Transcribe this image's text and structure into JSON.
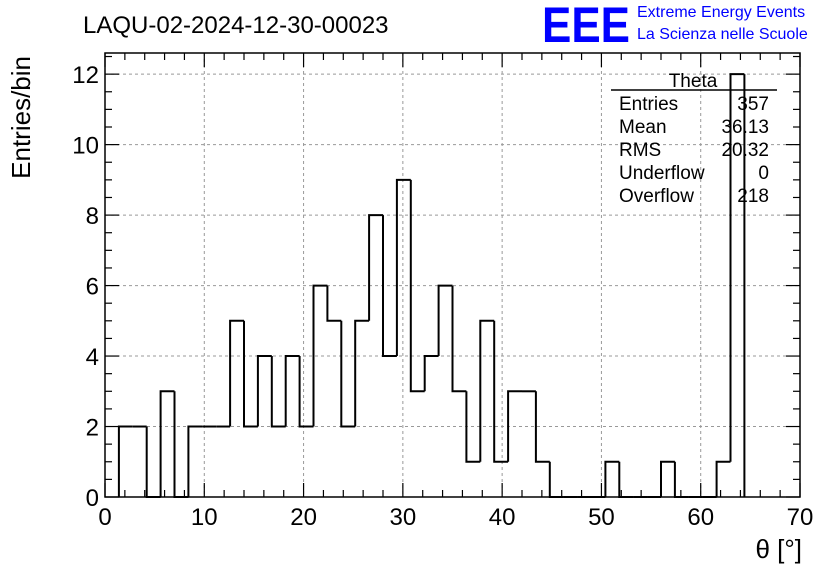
{
  "brand": {
    "logo_text": "EEE",
    "line1": "Extreme Energy Events",
    "line2": "La Scienza nelle Scuole",
    "color": "#0000ff"
  },
  "chart_data": {
    "type": "bar",
    "title": "LAQU-02-2024-12-30-00023",
    "xlabel": "θ [°]",
    "ylabel": "Entries/bin",
    "xlim": [
      0,
      70
    ],
    "ylim": [
      0,
      12.6
    ],
    "xticks": [
      "0",
      "10",
      "20",
      "30",
      "40",
      "50",
      "60",
      "70"
    ],
    "yticks": [
      "0",
      "2",
      "4",
      "6",
      "8",
      "10",
      "12"
    ],
    "grid": true,
    "bin_edges_start": 1.4,
    "bin_width": 1.4,
    "values": [
      2,
      2,
      0,
      3,
      0,
      2,
      2,
      2,
      5,
      2,
      4,
      2,
      4,
      2,
      6,
      5,
      2,
      5,
      8,
      4,
      9,
      3,
      4,
      6,
      3,
      1,
      5,
      1,
      3,
      3,
      1,
      0,
      0,
      0,
      0,
      1,
      0,
      0,
      0,
      1,
      0,
      0,
      0,
      1,
      12
    ],
    "line_color": "#000000"
  },
  "stats": {
    "title": "Theta",
    "rows": [
      {
        "label": "Entries",
        "value": "357"
      },
      {
        "label": "Mean",
        "value": "36.13"
      },
      {
        "label": "RMS",
        "value": "20.32"
      },
      {
        "label": "Underflow",
        "value": "0"
      },
      {
        "label": "Overflow",
        "value": "218"
      }
    ]
  }
}
